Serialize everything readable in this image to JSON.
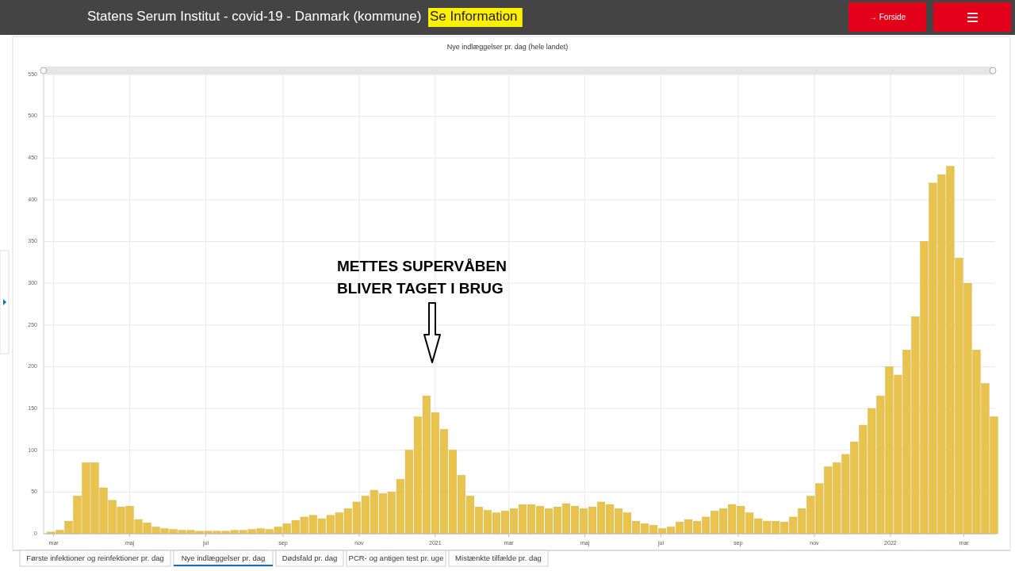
{
  "chart_data": {
    "type": "bar",
    "title": "Nye indlæggelser pr. dag (hele landet)",
    "annotations": [
      "Statens Serum Institut - covid-19 - Danmark (kommune)",
      "Se Information",
      "→ Forside",
      "Første infektioner og reinfektioner pr. dag",
      "Nye indlæggelser pr. dag",
      "Dødsfald pr. dag",
      "PCR- og antigen test pr. uge",
      "Mistænkte tilfælde pr. dag",
      "METTES SUPERVÅBEN\nBLIVER TAGET I BRUG"
    ],
    "x": [
      "2020-02-25",
      "2020-03-03",
      "2020-03-10",
      "2020-03-17",
      "2020-03-24",
      "2020-03-31",
      "2020-04-07",
      "2020-04-14",
      "2020-04-21",
      "2020-04-28",
      "2020-05-05",
      "2020-05-12",
      "2020-05-19",
      "2020-05-26",
      "2020-06-02",
      "2020-06-09",
      "2020-06-16",
      "2020-06-23",
      "2020-06-30",
      "2020-07-07",
      "2020-07-14",
      "2020-07-21",
      "2020-07-28",
      "2020-08-04",
      "2020-08-11",
      "2020-08-18",
      "2020-08-25",
      "2020-09-01",
      "2020-09-08",
      "2020-09-15",
      "2020-09-22",
      "2020-09-29",
      "2020-10-06",
      "2020-10-13",
      "2020-10-20",
      "2020-10-27",
      "2020-11-03",
      "2020-11-10",
      "2020-11-17",
      "2020-11-24",
      "2020-12-01",
      "2020-12-08",
      "2020-12-15",
      "2020-12-22",
      "2020-12-29",
      "2021-01-05",
      "2021-01-12",
      "2021-01-19",
      "2021-01-26",
      "2021-02-02",
      "2021-02-09",
      "2021-02-16",
      "2021-02-23",
      "2021-03-02",
      "2021-03-09",
      "2021-03-16",
      "2021-03-23",
      "2021-03-30",
      "2021-04-06",
      "2021-04-13",
      "2021-04-20",
      "2021-04-27",
      "2021-05-04",
      "2021-05-11",
      "2021-05-18",
      "2021-05-25",
      "2021-06-01",
      "2021-06-08",
      "2021-06-15",
      "2021-06-22",
      "2021-06-29",
      "2021-07-06",
      "2021-07-13",
      "2021-07-20",
      "2021-07-27",
      "2021-08-03",
      "2021-08-10",
      "2021-08-17",
      "2021-08-24",
      "2021-08-31",
      "2021-09-07",
      "2021-09-14",
      "2021-09-21",
      "2021-09-28",
      "2021-10-05",
      "2021-10-12",
      "2021-10-19",
      "2021-10-26",
      "2021-11-02",
      "2021-11-09",
      "2021-11-16",
      "2021-11-23",
      "2021-11-30",
      "2021-12-07",
      "2021-12-14",
      "2021-12-21",
      "2021-12-28",
      "2022-01-04",
      "2022-01-11",
      "2022-01-18",
      "2022-01-25",
      "2022-02-01",
      "2022-02-08",
      "2022-02-15",
      "2022-02-22",
      "2022-03-01",
      "2022-03-08",
      "2022-03-15",
      "2022-03-22"
    ],
    "values": [
      2,
      4,
      15,
      45,
      85,
      85,
      55,
      40,
      32,
      33,
      17,
      13,
      8,
      6,
      5,
      4,
      4,
      3,
      3,
      3,
      3,
      4,
      4,
      5,
      6,
      5,
      8,
      12,
      16,
      20,
      22,
      18,
      22,
      25,
      30,
      38,
      45,
      52,
      48,
      50,
      65,
      100,
      140,
      165,
      145,
      125,
      100,
      70,
      45,
      32,
      28,
      25,
      27,
      30,
      35,
      35,
      33,
      30,
      32,
      36,
      33,
      30,
      32,
      38,
      35,
      30,
      25,
      15,
      12,
      10,
      6,
      8,
      14,
      17,
      15,
      20,
      27,
      30,
      35,
      33,
      25,
      18,
      15,
      15,
      14,
      20,
      30,
      45,
      60,
      80,
      85,
      95,
      110,
      130,
      150,
      165,
      200,
      190,
      220,
      260,
      350,
      420,
      430,
      440,
      330,
      300,
      220,
      180,
      140
    ],
    "color": "#e8c44f",
    "xlim": [
      "2020-02-22",
      "2022-03-26"
    ],
    "xticks": [
      {
        "value": "2020-03-01",
        "label": "mar"
      },
      {
        "value": "2020-05-01",
        "label": "maj"
      },
      {
        "value": "2020-07-01",
        "label": "jul"
      },
      {
        "value": "2020-09-01",
        "label": "sep"
      },
      {
        "value": "2020-11-01",
        "label": "nov"
      },
      {
        "value": "2021-01-01",
        "label": "2021"
      },
      {
        "value": "2021-03-01",
        "label": "mar"
      },
      {
        "value": "2021-05-01",
        "label": "maj"
      },
      {
        "value": "2021-07-01",
        "label": "jul"
      },
      {
        "value": "2021-09-01",
        "label": "sep"
      },
      {
        "value": "2021-11-01",
        "label": "nov"
      },
      {
        "value": "2022-01-01",
        "label": "2022"
      },
      {
        "value": "2022-03-01",
        "label": "mar"
      }
    ],
    "ylim": [
      0,
      550
    ],
    "yticks": [
      0,
      50,
      100,
      150,
      200,
      250,
      300,
      350,
      400,
      450,
      500,
      550
    ],
    "grid": true
  }
}
